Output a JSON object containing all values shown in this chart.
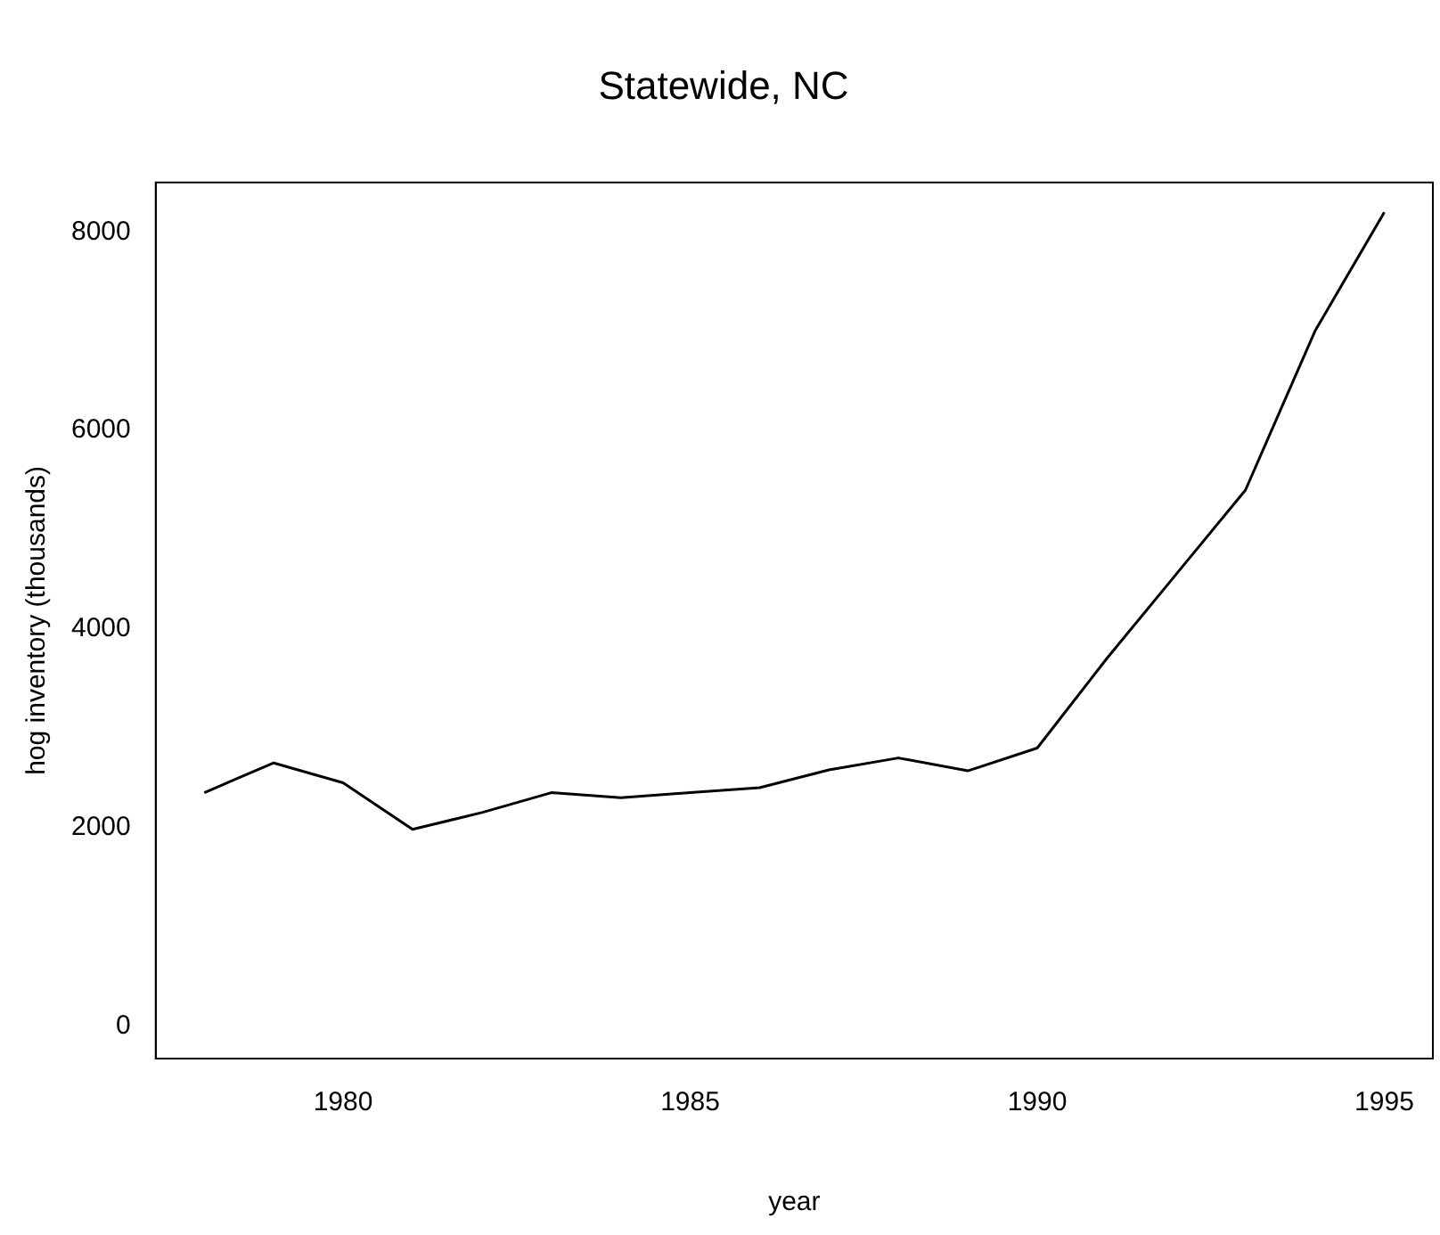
{
  "chart_data": {
    "type": "line",
    "title": "Statewide, NC",
    "xlabel": "year",
    "ylabel": "hog inventory (thousands)",
    "x": [
      1978,
      1979,
      1980,
      1981,
      1982,
      1983,
      1984,
      1985,
      1986,
      1987,
      1988,
      1989,
      1990,
      1991,
      1992,
      1993,
      1994,
      1995
    ],
    "series": [
      {
        "color": "#000000",
        "values": [
          2350,
          2650,
          2450,
          1980,
          2150,
          2350,
          2300,
          2350,
          2400,
          2580,
          2700,
          2570,
          2800,
          3700,
          4550,
          5400,
          7000,
          8200
        ]
      }
    ],
    "xlim": [
      1977.3,
      1995.7
    ],
    "xticks": [
      1980,
      1985,
      1990,
      1995
    ],
    "ylim": [
      -330,
      8500
    ],
    "yticks": [
      0,
      2000,
      4000,
      6000,
      8000
    ],
    "grid": false,
    "legend": false,
    "marker": "none",
    "line_style": "solid"
  }
}
